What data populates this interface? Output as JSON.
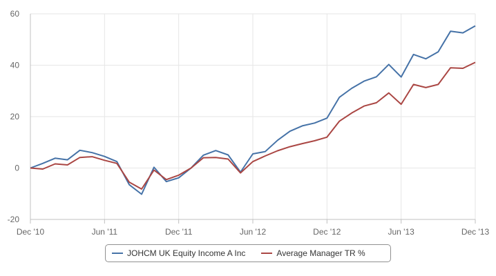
{
  "chart_data": {
    "type": "line",
    "x": [
      "2010-12",
      "2011-01",
      "2011-02",
      "2011-03",
      "2011-04",
      "2011-05",
      "2011-06",
      "2011-07",
      "2011-08",
      "2011-09",
      "2011-10",
      "2011-11",
      "2011-12",
      "2012-01",
      "2012-02",
      "2012-03",
      "2012-04",
      "2012-05",
      "2012-06",
      "2012-07",
      "2012-08",
      "2012-09",
      "2012-10",
      "2012-11",
      "2012-12",
      "2013-01",
      "2013-02",
      "2013-03",
      "2013-04",
      "2013-05",
      "2013-06",
      "2013-07",
      "2013-08",
      "2013-09",
      "2013-10",
      "2013-11",
      "2013-12"
    ],
    "xticks": [
      {
        "at": "2010-12",
        "label": "Dec '10"
      },
      {
        "at": "2011-06",
        "label": "Jun '11"
      },
      {
        "at": "2011-12",
        "label": "Dec '11"
      },
      {
        "at": "2012-06",
        "label": "Jun '12"
      },
      {
        "at": "2012-12",
        "label": "Dec '12"
      },
      {
        "at": "2013-06",
        "label": "Jun '13"
      },
      {
        "at": "2013-12",
        "label": "Dec '13"
      }
    ],
    "yticks": [
      60,
      40,
      20,
      0,
      -20
    ],
    "ylim": [
      -20,
      60
    ],
    "grid": true,
    "legend_position": "bottom-center",
    "series": [
      {
        "name": "JOHCM UK Equity Income A Inc",
        "color": "#4572a7",
        "values": [
          0,
          1.8,
          3.8,
          3.2,
          6.9,
          6.0,
          4.5,
          2.5,
          -6.5,
          -10.2,
          0.3,
          -5.3,
          -3.8,
          0.0,
          5.0,
          6.8,
          5.1,
          -1.6,
          5.5,
          6.4,
          10.8,
          14.3,
          16.4,
          17.5,
          19.4,
          27.5,
          31.0,
          33.8,
          35.5,
          40.3,
          35.4,
          44.2,
          42.5,
          45.2,
          53.2,
          52.6,
          55.3
        ]
      },
      {
        "name": "Average Manager TR %",
        "color": "#aa4643",
        "values": [
          0,
          -0.4,
          1.6,
          1.2,
          4.1,
          4.4,
          3.0,
          1.8,
          -5.5,
          -8.2,
          -0.8,
          -4.5,
          -2.8,
          0.0,
          4.0,
          4.1,
          3.5,
          -1.9,
          2.5,
          4.7,
          6.7,
          8.3,
          9.5,
          10.6,
          12.0,
          18.2,
          21.4,
          24.1,
          25.4,
          29.2,
          24.8,
          32.5,
          31.3,
          32.5,
          39.0,
          38.8,
          41.1
        ]
      }
    ]
  }
}
